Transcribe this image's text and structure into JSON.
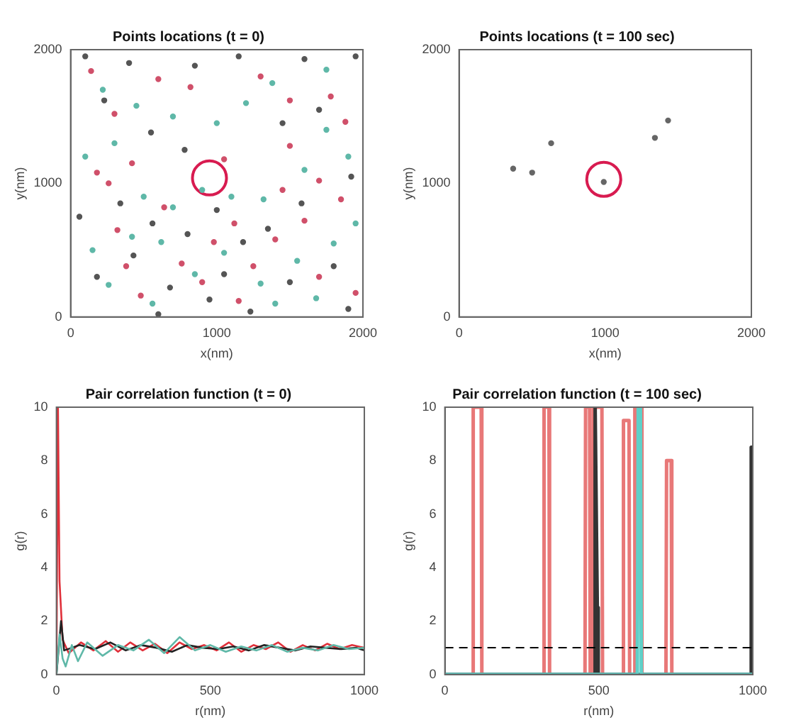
{
  "chart_data": [
    {
      "type": "scatter",
      "title": "Points locations (t = 0)",
      "xlabel": "x(nm)",
      "ylabel": "y(nm)",
      "xlim": [
        0,
        2000
      ],
      "ylim": [
        0,
        2000
      ],
      "xticks": [
        0,
        1000,
        2000
      ],
      "yticks": [
        0,
        1000,
        2000
      ],
      "marker": "circle",
      "series": [
        {
          "color": "#d0506a",
          "x": [
            300,
            180,
            1880,
            420,
            320,
            600,
            1300,
            1500,
            1700,
            1850,
            1600,
            1400,
            1120,
            980,
            760,
            480,
            1950,
            1700,
            1250,
            1050,
            260,
            1500,
            820,
            140,
            1780,
            640,
            380,
            1150,
            1450,
            900
          ],
          "values": [
            1520,
            1080,
            1460,
            1150,
            650,
            1780,
            1800,
            1620,
            1020,
            880,
            720,
            580,
            700,
            560,
            400,
            160,
            180,
            300,
            380,
            1180,
            1000,
            1280,
            1720,
            1840,
            1650,
            820,
            380,
            120,
            950,
            260
          ]
        },
        {
          "color": "#5fb8a8",
          "x": [
            220,
            450,
            700,
            1000,
            1380,
            1750,
            1900,
            1600,
            1320,
            1100,
            900,
            700,
            500,
            300,
            100,
            150,
            420,
            620,
            850,
            1050,
            1300,
            1550,
            1800,
            1950,
            1680,
            1400,
            560,
            260,
            1200,
            1750
          ],
          "values": [
            1700,
            1580,
            1500,
            1450,
            1750,
            1850,
            1200,
            1100,
            880,
            900,
            950,
            820,
            900,
            1300,
            1200,
            500,
            600,
            560,
            320,
            480,
            250,
            420,
            550,
            700,
            140,
            100,
            100,
            240,
            1600,
            1400
          ]
        },
        {
          "color": "#555555",
          "x": [
            100,
            400,
            850,
            1150,
            1600,
            1950,
            230,
            550,
            780,
            1450,
            1700,
            1920,
            1580,
            1350,
            1180,
            1000,
            800,
            560,
            340,
            60,
            180,
            430,
            680,
            950,
            1230,
            1500,
            1800,
            1900,
            600,
            1050
          ],
          "values": [
            1950,
            1900,
            1880,
            1950,
            1930,
            1950,
            1620,
            1380,
            1250,
            1450,
            1550,
            1050,
            850,
            660,
            560,
            800,
            620,
            700,
            850,
            750,
            300,
            460,
            220,
            130,
            40,
            260,
            380,
            60,
            20,
            320
          ]
        },
        {
          "type": "bubble",
          "color": "#d81b50",
          "x": [
            950
          ],
          "values": [
            1040
          ],
          "sizes": [
            1
          ]
        }
      ]
    },
    {
      "type": "scatter",
      "title": "Points locations (t = 100 sec)",
      "xlabel": "x(nm)",
      "ylabel": "y(nm)",
      "xlim": [
        0,
        2000
      ],
      "ylim": [
        0,
        2000
      ],
      "xticks": [
        0,
        1000,
        2000
      ],
      "yticks": [
        0,
        1000,
        2000
      ],
      "marker": "circle",
      "series": [
        {
          "color": "#666666",
          "x": [
            370,
            500,
            630,
            1340,
            1430,
            990
          ],
          "values": [
            1110,
            1080,
            1300,
            1340,
            1470,
            1010
          ]
        },
        {
          "type": "bubble",
          "color": "#d81b50",
          "x": [
            990
          ],
          "values": [
            1030
          ],
          "sizes": [
            1
          ]
        }
      ]
    },
    {
      "type": "line",
      "title": "Pair correlation function (t = 0)",
      "xlabel": "r(nm)",
      "ylabel": "g(r)",
      "xlim": [
        0,
        1000
      ],
      "ylim": [
        0,
        10
      ],
      "xticks": [
        0,
        500,
        1000
      ],
      "yticks": [
        0,
        2,
        4,
        6,
        8,
        10
      ],
      "series": [
        {
          "color": "#5fb8a8",
          "x": [
            0,
            10,
            20,
            30,
            50,
            70,
            100,
            150,
            200,
            250,
            300,
            350,
            400,
            450,
            500,
            550,
            600,
            650,
            700,
            750,
            800,
            850,
            900,
            950,
            1000
          ],
          "values": [
            0,
            1.5,
            0.6,
            0.3,
            1.1,
            0.5,
            1.2,
            0.7,
            1.1,
            0.9,
            1.3,
            0.8,
            1.4,
            0.9,
            1.1,
            0.85,
            1.05,
            0.9,
            1.1,
            0.85,
            1.0,
            0.9,
            1.1,
            0.95,
            1.0
          ]
        },
        {
          "color": "#222222",
          "x": [
            0,
            15,
            25,
            50,
            75,
            125,
            175,
            225,
            275,
            325,
            375,
            425,
            475,
            525,
            575,
            625,
            675,
            725,
            775,
            825,
            875,
            925,
            975,
            1000
          ],
          "values": [
            0,
            2,
            0.9,
            1.0,
            1.1,
            0.95,
            1.2,
            0.9,
            1.1,
            1.0,
            0.85,
            1.1,
            1.0,
            0.95,
            1.05,
            0.9,
            1.1,
            1.0,
            0.9,
            1.05,
            1.0,
            0.95,
            1.0,
            0.9
          ]
        },
        {
          "color": "#e0303a",
          "x": [
            0,
            5,
            10,
            20,
            40,
            80,
            120,
            160,
            200,
            240,
            280,
            320,
            360,
            400,
            440,
            480,
            520,
            560,
            600,
            640,
            680,
            720,
            760,
            800,
            840,
            880,
            920,
            960,
            1000
          ],
          "values": [
            0,
            10,
            3.5,
            1.3,
            0.8,
            1.2,
            0.9,
            1.25,
            0.85,
            1.2,
            0.9,
            1.15,
            0.8,
            1.2,
            0.95,
            1.1,
            0.9,
            1.2,
            0.85,
            1.1,
            0.95,
            1.2,
            0.85,
            1.1,
            0.9,
            1.15,
            0.95,
            1.1,
            1.0
          ]
        }
      ]
    },
    {
      "type": "line",
      "title": "Pair correlation function (t = 100 sec)",
      "xlabel": "r(nm)",
      "ylabel": "g(r)",
      "xlim": [
        0,
        1000
      ],
      "ylim": [
        0,
        10
      ],
      "xticks": [
        0,
        500,
        1000
      ],
      "yticks": [
        0,
        2,
        4,
        6,
        8,
        10
      ],
      "ref_lines": [
        {
          "axis": "y",
          "value": 1,
          "color": "#000000",
          "line_style": "dashed"
        }
      ],
      "series": [
        {
          "color": "#5fd0c8",
          "x": [
            0,
            625,
            628,
            635,
            638,
            1000
          ],
          "values": [
            0,
            0,
            10,
            10,
            0,
            0
          ]
        },
        {
          "color": "#333333",
          "x": [
            0,
            485,
            488,
            495,
            498,
            992,
            995,
            997,
            1000
          ],
          "values": [
            0,
            0,
            10,
            2.5,
            0,
            0,
            8.5,
            8.5,
            0
          ]
        },
        {
          "color": "#e87878",
          "x": [
            0,
            90,
            92,
            118,
            120,
            320,
            322,
            338,
            340,
            455,
            457,
            470,
            472,
            480,
            482,
            510,
            512,
            578,
            580,
            598,
            600,
            615,
            617,
            638,
            640,
            718,
            720,
            735,
            737,
            1000
          ],
          "values": [
            0,
            0,
            10,
            10,
            0,
            0,
            10,
            10,
            0,
            0,
            10,
            10,
            0,
            0,
            10,
            10,
            0,
            0,
            9.5,
            9.5,
            0,
            0,
            10,
            10,
            0,
            0,
            8,
            8,
            0,
            0
          ]
        }
      ]
    }
  ]
}
